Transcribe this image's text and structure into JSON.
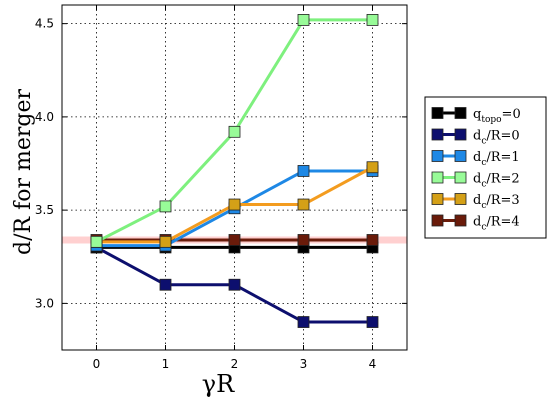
{
  "chart_data": {
    "type": "line",
    "xlabel": "γR",
    "ylabel": "d/R for merger",
    "x": [
      0,
      1,
      2,
      3,
      4
    ],
    "xlim": [
      -0.5,
      4.5
    ],
    "ylim": [
      2.75,
      4.6
    ],
    "xticks": [
      "0",
      "1",
      "2",
      "3",
      "4"
    ],
    "yticks": [
      "3.0",
      "3.5",
      "4.0",
      "4.5"
    ],
    "grid": true,
    "legend_position": "right",
    "series": [
      {
        "name_base": "q",
        "name_sub": "topo",
        "name_tail": "=0",
        "color": "#000000",
        "values": [
          3.3,
          3.3,
          3.3,
          3.3,
          3.3
        ]
      },
      {
        "name_base": "d",
        "name_sub": "c",
        "name_tail": "/R=0",
        "color": "#0d0f6e",
        "values": [
          3.3,
          3.1,
          3.1,
          2.9,
          2.9
        ]
      },
      {
        "name_base": "d",
        "name_sub": "c",
        "name_tail": "/R=1",
        "color": "#1e88e5",
        "values": [
          3.31,
          3.31,
          3.51,
          3.71,
          3.71
        ]
      },
      {
        "name_base": "d",
        "name_sub": "c",
        "name_tail": "/R=2",
        "color": "#7ef07e",
        "values": [
          3.33,
          3.52,
          3.92,
          4.52,
          4.52
        ]
      },
      {
        "name_base": "d",
        "name_sub": "c",
        "name_tail": "/R=3",
        "color": "#f39c1f",
        "values": [
          3.33,
          3.33,
          3.53,
          3.53,
          3.73
        ]
      },
      {
        "name_base": "d",
        "name_sub": "c",
        "name_tail": "/R=4",
        "color": "#6a1b0a",
        "values": [
          3.34,
          3.34,
          3.34,
          3.34,
          3.34
        ]
      }
    ],
    "marker_fills": [
      "#000000",
      "#0d0f6e",
      "#1e88e5",
      "#98fb98",
      "#d4a017",
      "#6a1b0a"
    ],
    "highlight_line": {
      "y": 3.34,
      "color": "#ffd0d0"
    }
  }
}
